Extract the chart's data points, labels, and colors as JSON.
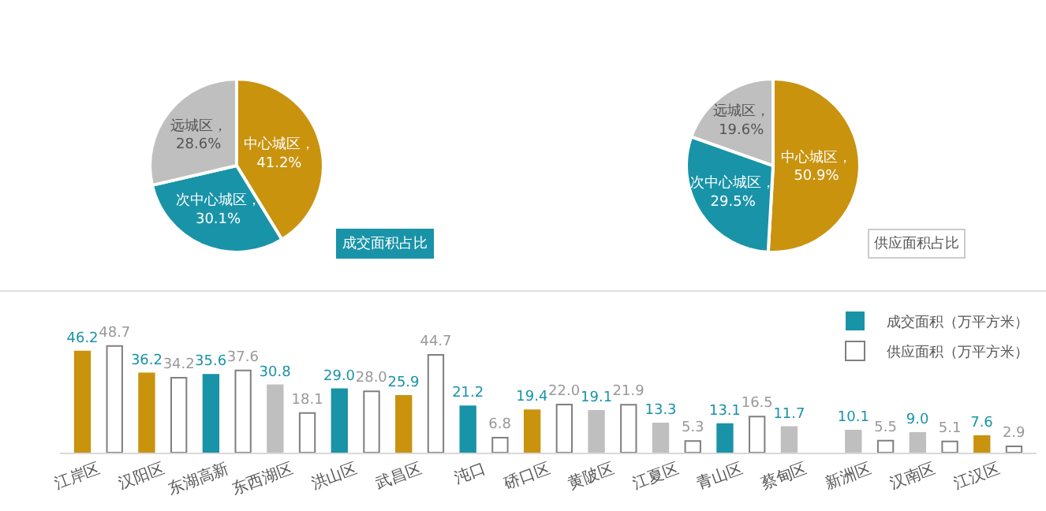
{
  "chart_data": [
    {
      "type": "pie",
      "title": "成交面积占比",
      "categories": [
        "中心城区",
        "次中心城区",
        "远城区"
      ],
      "values": [
        41.2,
        30.1,
        28.6
      ],
      "value_labels": [
        "，41.2%",
        "，30.1%",
        "，28.6%"
      ],
      "colors": [
        "#c9930e",
        "#1993a8",
        "#bfbfbf"
      ],
      "legend": false
    },
    {
      "type": "pie",
      "title": "供应面积占比",
      "categories": [
        "中心城区",
        "次中心城区",
        "远城区"
      ],
      "values": [
        50.9,
        29.5,
        19.6
      ],
      "value_labels": [
        "，50.9%",
        "，29.5%",
        "，19.6%"
      ],
      "colors": [
        "#c9930e",
        "#1993a8",
        "#bfbfbf"
      ],
      "legend": false
    },
    {
      "type": "bar",
      "categories": [
        "江岸区",
        "汉阳区",
        "东湖高新",
        "东西湖区",
        "洪山区",
        "武昌区",
        "沌口",
        "硚口区",
        "黄陂区",
        "江夏区",
        "青山区",
        "蔡甸区",
        "新洲区",
        "汉南区",
        "江汉区"
      ],
      "legend": "top right",
      "series": [
        {
          "name": "成交面积（万平方米）",
          "color": "#1993a8",
          "colors": [
            "#c9930e",
            "#c9930e",
            "#1993a8",
            "#bfbfbf",
            "#1993a8",
            "#c9930e",
            "#1993a8",
            "#c9930e",
            "#bfbfbf",
            "#bfbfbf",
            "#1993a8",
            "#bfbfbf",
            "#bfbfbf",
            "#bfbfbf",
            "#c9930e"
          ],
          "values": [
            46.2,
            36.2,
            35.6,
            30.8,
            29.0,
            25.9,
            21.2,
            19.4,
            19.1,
            13.3,
            13.1,
            11.7,
            10.1,
            9.0,
            7.6
          ],
          "value_labels": [
            "46.2",
            "36.2",
            "35.6",
            "30.8",
            "29.0",
            "25.9",
            "21.2",
            "19.4",
            "19.1",
            "13.3",
            "13.1",
            "11.7",
            "10.1",
            "9.0",
            "7.6"
          ]
        },
        {
          "name": "供应面积（万平方米）",
          "color": "#ffffff",
          "values": [
            48.7,
            34.2,
            37.6,
            18.1,
            28.0,
            44.7,
            6.8,
            22.0,
            21.9,
            5.3,
            16.5,
            null,
            5.5,
            5.1,
            2.9
          ],
          "value_labels": [
            "48.7",
            "34.2",
            "37.6",
            "18.1",
            "28.0",
            "44.7",
            "6.8",
            "22.0",
            "21.9",
            "5.3",
            "16.5",
            null,
            "5.5",
            "5.1",
            "2.9"
          ]
        }
      ]
    }
  ]
}
